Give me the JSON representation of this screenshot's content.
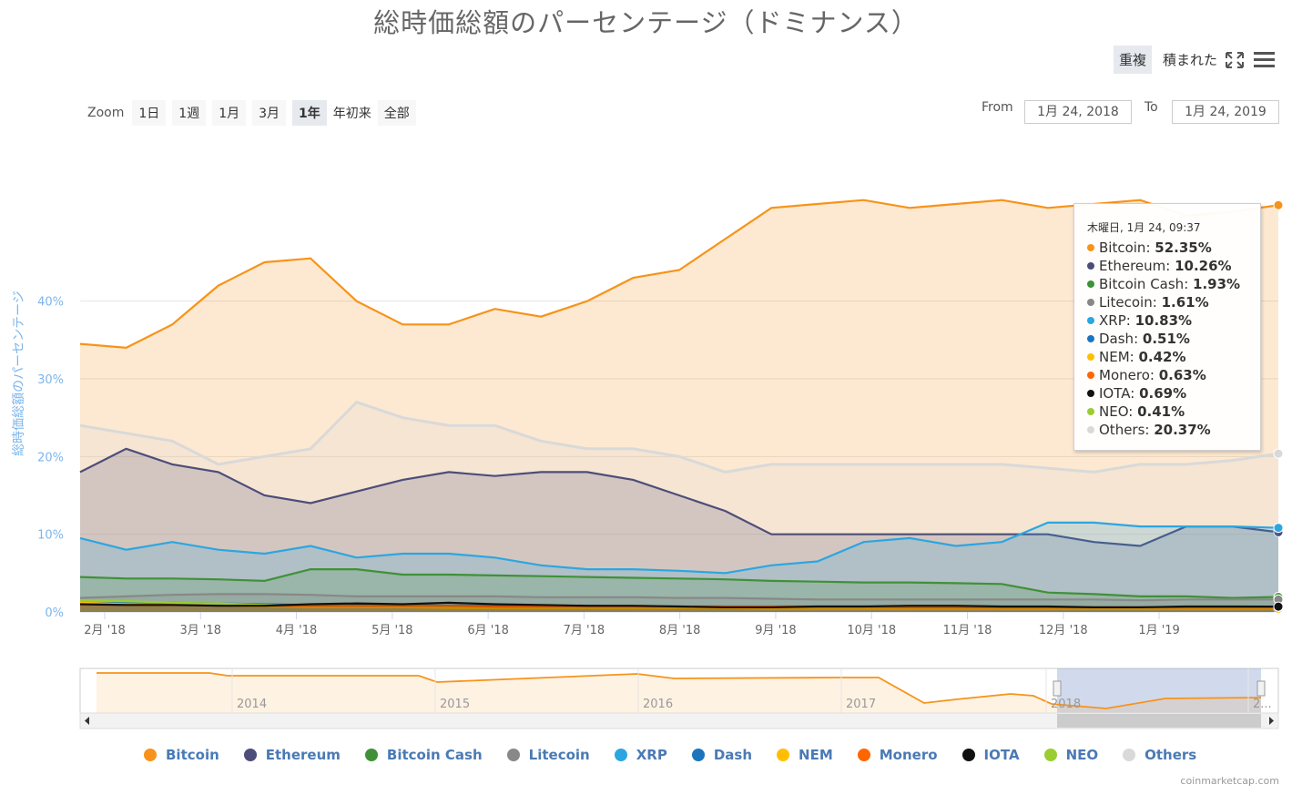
{
  "title": "総時価総額のパーセンテージ（ドミナンス）",
  "modes": {
    "overlap": "重複",
    "stacked": "積まれた"
  },
  "icons": {
    "fullscreen": "fullscreen-icon",
    "menu": "hamburger-menu-icon"
  },
  "zoom": {
    "label": "Zoom",
    "buttons": [
      "1日",
      "1週",
      "1月",
      "3月",
      "1年",
      "年初来",
      "全部"
    ],
    "active": "1年"
  },
  "range": {
    "from_label": "From",
    "from": "1月 24, 2018",
    "to_label": "To",
    "to": "1月 24, 2019"
  },
  "navigator_years": [
    "2014",
    "2015",
    "2016",
    "2017",
    "2018",
    "2..."
  ],
  "tooltip": {
    "header": "木曜日, 1月 24, 09:37",
    "rows": [
      {
        "name": "Bitcoin",
        "value": "52.35%"
      },
      {
        "name": "Ethereum",
        "value": "10.26%"
      },
      {
        "name": "Bitcoin Cash",
        "value": "1.93%"
      },
      {
        "name": "Litecoin",
        "value": "1.61%"
      },
      {
        "name": "XRP",
        "value": "10.83%"
      },
      {
        "name": "Dash",
        "value": "0.51%"
      },
      {
        "name": "NEM",
        "value": "0.42%"
      },
      {
        "name": "Monero",
        "value": "0.63%"
      },
      {
        "name": "IOTA",
        "value": "0.69%"
      },
      {
        "name": "NEO",
        "value": "0.41%"
      },
      {
        "name": "Others",
        "value": "20.37%"
      }
    ]
  },
  "credit": "coinmarketcap.com",
  "chart_data": {
    "type": "area",
    "title": "総時価総額のパーセンテージ（ドミナンス）",
    "ylabel": "総時価総額のパーセンテージ",
    "xlabel": "",
    "ylim": [
      0,
      60
    ],
    "yticks": [
      "0%",
      "10%",
      "20%",
      "30%",
      "40%"
    ],
    "xticks": [
      "2月 '18",
      "3月 '18",
      "4月 '18",
      "5月 '18",
      "6月 '18",
      "7月 '18",
      "8月 '18",
      "9月 '18",
      "10月 '18",
      "11月 '18",
      "12月 '18",
      "1月 '19"
    ],
    "legend_position": "bottom",
    "grid": true,
    "x": [
      "2018-01-24",
      "2018-02-07",
      "2018-02-21",
      "2018-03-07",
      "2018-03-21",
      "2018-04-04",
      "2018-04-18",
      "2018-05-02",
      "2018-05-16",
      "2018-05-30",
      "2018-06-13",
      "2018-06-27",
      "2018-07-11",
      "2018-07-25",
      "2018-08-08",
      "2018-08-22",
      "2018-09-05",
      "2018-09-19",
      "2018-10-03",
      "2018-10-17",
      "2018-10-31",
      "2018-11-14",
      "2018-11-28",
      "2018-12-12",
      "2018-12-26",
      "2019-01-09",
      "2019-01-24"
    ],
    "series": [
      {
        "name": "Bitcoin",
        "color": "#f7931a",
        "values": [
          34.5,
          34,
          37,
          42,
          45,
          45.5,
          40,
          37,
          37,
          39,
          38,
          40,
          43,
          44,
          48,
          52,
          52.5,
          53,
          52,
          52.5,
          53,
          52,
          52.5,
          53,
          51,
          51.5,
          52.35
        ]
      },
      {
        "name": "Ethereum",
        "color": "#4d4d7a",
        "values": [
          18,
          21,
          19,
          18,
          15,
          14,
          15.5,
          17,
          18,
          17.5,
          18,
          18,
          17,
          15,
          13,
          10,
          10,
          10,
          10,
          10,
          10,
          10,
          9,
          8.5,
          11,
          11,
          10.26
        ]
      },
      {
        "name": "Bitcoin Cash",
        "color": "#3f9137",
        "values": [
          4.5,
          4.3,
          4.3,
          4.2,
          4,
          5.5,
          5.5,
          4.8,
          4.8,
          4.7,
          4.6,
          4.5,
          4.4,
          4.3,
          4.2,
          4,
          3.9,
          3.8,
          3.8,
          3.7,
          3.6,
          2.5,
          2.3,
          2,
          2,
          1.8,
          1.93
        ]
      },
      {
        "name": "Litecoin",
        "color": "#888888",
        "values": [
          1.8,
          2,
          2.2,
          2.3,
          2.3,
          2.2,
          2,
          2,
          2,
          2,
          1.9,
          1.9,
          1.9,
          1.8,
          1.8,
          1.7,
          1.6,
          1.6,
          1.6,
          1.6,
          1.6,
          1.6,
          1.6,
          1.5,
          1.6,
          1.6,
          1.61
        ]
      },
      {
        "name": "XRP",
        "color": "#2ca6e0",
        "values": [
          9.5,
          8,
          9,
          8,
          7.5,
          8.5,
          7,
          7.5,
          7.5,
          7,
          6,
          5.5,
          5.5,
          5.3,
          5,
          6,
          6.5,
          9,
          9.5,
          8.5,
          9,
          11.5,
          11.5,
          11,
          11,
          11,
          10.83
        ]
      },
      {
        "name": "Dash",
        "color": "#1c75bc",
        "values": [
          1.1,
          1.2,
          1.2,
          1.1,
          1,
          0.9,
          0.9,
          0.9,
          0.8,
          0.8,
          0.8,
          0.8,
          0.7,
          0.7,
          0.7,
          0.7,
          0.7,
          0.7,
          0.6,
          0.6,
          0.6,
          0.6,
          0.5,
          0.5,
          0.5,
          0.5,
          0.51
        ]
      },
      {
        "name": "NEM",
        "color": "#ffbf00",
        "values": [
          1.2,
          1.0,
          0.9,
          0.8,
          0.7,
          0.6,
          0.6,
          0.6,
          0.5,
          0.5,
          0.5,
          0.5,
          0.5,
          0.5,
          0.5,
          0.4,
          0.4,
          0.4,
          0.4,
          0.4,
          0.4,
          0.4,
          0.4,
          0.4,
          0.4,
          0.4,
          0.42
        ]
      },
      {
        "name": "Monero",
        "color": "#ff6600",
        "values": [
          0.9,
          0.9,
          0.9,
          0.8,
          0.8,
          0.8,
          0.8,
          0.8,
          0.8,
          0.7,
          0.7,
          0.7,
          0.7,
          0.7,
          0.7,
          0.7,
          0.7,
          0.7,
          0.6,
          0.6,
          0.6,
          0.6,
          0.6,
          0.6,
          0.6,
          0.6,
          0.63
        ]
      },
      {
        "name": "IOTA",
        "color": "#111111",
        "values": [
          1,
          0.9,
          0.9,
          0.8,
          0.8,
          1,
          1.1,
          1,
          1.2,
          1,
          0.9,
          0.8,
          0.8,
          0.7,
          0.6,
          0.6,
          0.7,
          0.7,
          0.8,
          0.8,
          0.7,
          0.7,
          0.6,
          0.6,
          0.7,
          0.7,
          0.69
        ]
      },
      {
        "name": "NEO",
        "color": "#9acd32",
        "values": [
          1.5,
          1.4,
          1.2,
          1.1,
          0.9,
          0.8,
          0.8,
          0.8,
          0.7,
          0.7,
          0.6,
          0.6,
          0.6,
          0.5,
          0.5,
          0.5,
          0.5,
          0.5,
          0.5,
          0.5,
          0.4,
          0.4,
          0.4,
          0.4,
          0.4,
          0.4,
          0.41
        ]
      },
      {
        "name": "Others",
        "color": "#d9d9d9",
        "values": [
          24,
          23,
          22,
          19,
          20,
          21,
          27,
          25,
          24,
          24,
          22,
          21,
          21,
          20,
          18,
          19,
          19,
          19,
          19,
          19,
          19,
          18.5,
          18,
          19,
          19,
          19.5,
          20.37
        ]
      }
    ]
  }
}
